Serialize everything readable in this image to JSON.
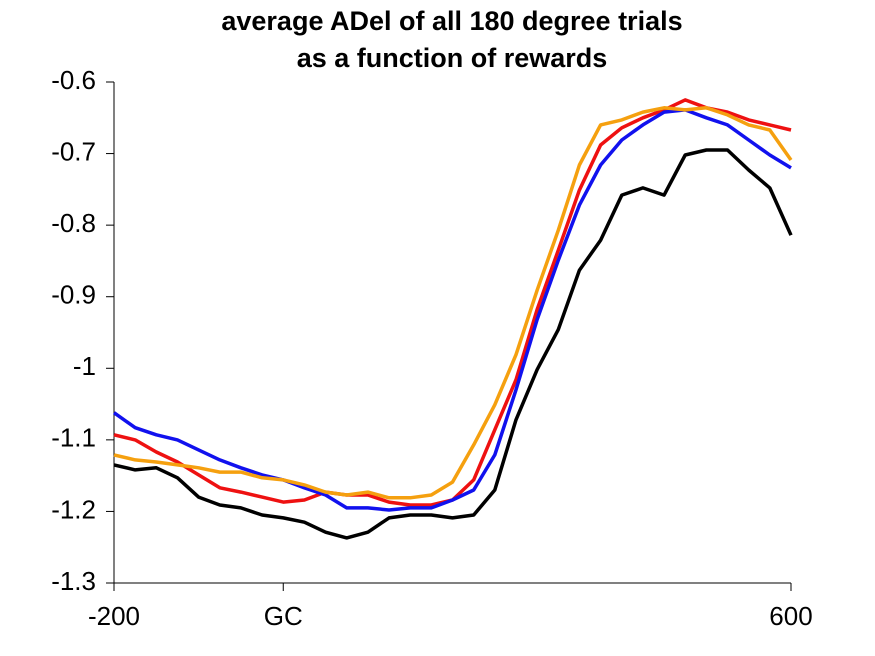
{
  "chart_data": {
    "type": "line",
    "title": [
      "average ADel of all 180 degree trials",
      "as a function of rewards"
    ],
    "x": [
      -200,
      -175,
      -150,
      -125,
      -100,
      -75,
      -50,
      -25,
      0,
      25,
      50,
      75,
      100,
      125,
      150,
      175,
      200,
      225,
      250,
      275,
      300,
      325,
      350,
      375,
      400,
      425,
      450,
      475,
      500,
      525,
      550,
      575,
      600
    ],
    "series": [
      {
        "color": "#000000",
        "values": [
          -1.135,
          -1.142,
          -1.139,
          -1.153,
          -1.18,
          -1.191,
          -1.195,
          -1.205,
          -1.209,
          -1.215,
          -1.229,
          -1.237,
          -1.229,
          -1.209,
          -1.205,
          -1.205,
          -1.209,
          -1.205,
          -1.17,
          -1.072,
          -1.002,
          -0.946,
          -0.863,
          -0.821,
          -0.758,
          -0.748,
          -0.758,
          -0.702,
          -0.695,
          -0.695,
          -0.723,
          -0.748,
          -0.814
        ]
      },
      {
        "color": "#ee1111",
        "values": [
          -1.093,
          -1.1,
          -1.117,
          -1.131,
          -1.149,
          -1.167,
          -1.173,
          -1.18,
          -1.187,
          -1.184,
          -1.173,
          -1.177,
          -1.177,
          -1.187,
          -1.191,
          -1.191,
          -1.184,
          -1.156,
          -1.086,
          -1.016,
          -0.918,
          -0.835,
          -0.751,
          -0.688,
          -0.664,
          -0.65,
          -0.639,
          -0.625,
          -0.636,
          -0.642,
          -0.653,
          -0.66,
          -0.667
        ]
      },
      {
        "color": "#1111ee",
        "values": [
          -1.062,
          -1.083,
          -1.093,
          -1.1,
          -1.114,
          -1.128,
          -1.139,
          -1.149,
          -1.156,
          -1.167,
          -1.177,
          -1.195,
          -1.195,
          -1.198,
          -1.195,
          -1.195,
          -1.184,
          -1.17,
          -1.121,
          -1.03,
          -0.932,
          -0.849,
          -0.772,
          -0.716,
          -0.681,
          -0.66,
          -0.642,
          -0.639,
          -0.65,
          -0.66,
          -0.681,
          -0.702,
          -0.72
        ]
      },
      {
        "color": "#f5a00f",
        "values": [
          -1.121,
          -1.128,
          -1.131,
          -1.135,
          -1.139,
          -1.145,
          -1.145,
          -1.153,
          -1.156,
          -1.163,
          -1.173,
          -1.177,
          -1.173,
          -1.181,
          -1.181,
          -1.177,
          -1.159,
          -1.107,
          -1.051,
          -0.981,
          -0.891,
          -0.807,
          -0.716,
          -0.66,
          -0.653,
          -0.642,
          -0.636,
          -0.639,
          -0.636,
          -0.646,
          -0.66,
          -0.667,
          -0.709
        ]
      }
    ],
    "xlim": [
      -200,
      600
    ],
    "xticks": [
      -200,
      {
        "value": 0,
        "label": "GC"
      },
      600
    ],
    "ylim": [
      -1.3,
      -0.6
    ],
    "yticks": [
      -0.6,
      -0.7,
      -0.8,
      -0.9,
      -1,
      -1.1,
      -1.2,
      -1.3
    ],
    "grid": false
  }
}
